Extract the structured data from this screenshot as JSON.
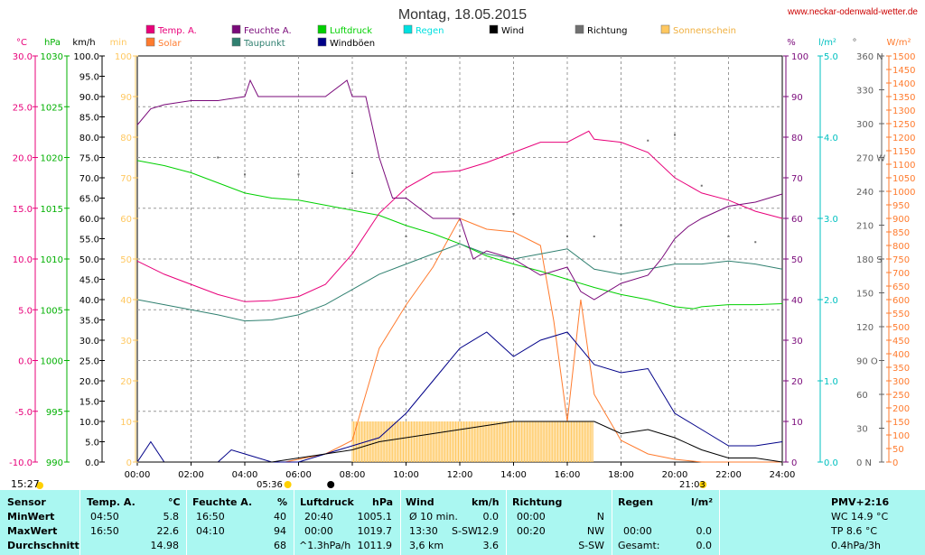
{
  "page": {
    "title": "Montag, 18.05.2015",
    "site": "www.neckar-odenwald-wetter.de",
    "update_time": "15:27",
    "sunrise": "05:36",
    "sunset": "21:03"
  },
  "chart_data": {
    "type": "line",
    "title": "Montag, 18.05.2015",
    "x_range_hours": [
      0,
      24
    ],
    "x_ticks": [
      "00:00",
      "02:00",
      "04:00",
      "06:00",
      "08:00",
      "10:00",
      "12:00",
      "14:00",
      "16:00",
      "18:00",
      "20:00",
      "22:00",
      "24:00"
    ],
    "grid": true,
    "legend": [
      {
        "name": "Temp. A.",
        "color": "#e8007a"
      },
      {
        "name": "Feuchte A.",
        "color": "#7a0a7a"
      },
      {
        "name": "Luftdruck",
        "color": "#00d000"
      },
      {
        "name": "Regen",
        "color": "#00e0e0"
      },
      {
        "name": "Wind",
        "color": "#000000"
      },
      {
        "name": "Richtung",
        "color": "#707070"
      },
      {
        "name": "Sonnenschein",
        "color": "#ffc860"
      },
      {
        "name": "Solar",
        "color": "#ff7b2e"
      },
      {
        "name": "Taupunkt",
        "color": "#308070"
      },
      {
        "name": "Windböen",
        "color": "#000088"
      }
    ],
    "axes": {
      "temp": {
        "unit": "°C",
        "min": -10,
        "max": 30,
        "color": "#e8007a",
        "ticks": [
          "30.0",
          "25.0",
          "20.0",
          "15.0",
          "10.0",
          "5.0",
          "0.0",
          "-5.0",
          "-10.0"
        ]
      },
      "pressure": {
        "unit": "hPa",
        "min": 990,
        "max": 1030,
        "color": "#00b000",
        "ticks": [
          "1030",
          "1025",
          "1020",
          "1015",
          "1010",
          "1005",
          "1000",
          "995",
          "990"
        ]
      },
      "wind": {
        "unit": "km/h",
        "min": 0,
        "max": 100,
        "color": "#000000",
        "ticks": [
          "100.0",
          "95.0",
          "90.0",
          "85.0",
          "80.0",
          "75.0",
          "70.0",
          "65.0",
          "60.0",
          "55.0",
          "50.0",
          "45.0",
          "40.0",
          "35.0",
          "30.0",
          "25.0",
          "20.0",
          "15.0",
          "10.0",
          "5.0",
          "0.0"
        ]
      },
      "sun": {
        "unit": "min",
        "min": 0,
        "max": 100,
        "color": "#ffc860",
        "ticks": [
          "100",
          "90",
          "80",
          "70",
          "60",
          "50",
          "40",
          "30",
          "20",
          "10",
          "0"
        ]
      },
      "humidity": {
        "unit": "%",
        "min": 0,
        "max": 100,
        "color": "#7a0a7a",
        "ticks": [
          "100",
          "90",
          "80",
          "70",
          "60",
          "50",
          "40",
          "30",
          "20",
          "10",
          "0"
        ]
      },
      "rain": {
        "unit": "l/m²",
        "min": 0,
        "max": 5,
        "color": "#00c0c0",
        "ticks": [
          "5.0",
          "4.0",
          "3.0",
          "2.0",
          "1.0",
          "0.0"
        ]
      },
      "direction": {
        "unit": "°",
        "min": 0,
        "max": 360,
        "color": "#606060",
        "ticks": [
          "360 N",
          "330",
          "300",
          "270 W",
          "240",
          "210",
          "180 S",
          "150",
          "120",
          "90 O",
          "60",
          "30",
          "0 N"
        ]
      },
      "solar": {
        "unit": "W/m²",
        "min": 0,
        "max": 1500,
        "color": "#ff7b2e",
        "ticks": [
          "1500",
          "1450",
          "1400",
          "1350",
          "1300",
          "1250",
          "1200",
          "1150",
          "1100",
          "1050",
          "1000",
          "950",
          "900",
          "850",
          "800",
          "750",
          "700",
          "650",
          "600",
          "550",
          "500",
          "450",
          "400",
          "350",
          "300",
          "250",
          "200",
          "150",
          "100",
          "50",
          "0"
        ]
      }
    },
    "series": {
      "temperature": [
        [
          0,
          9.8
        ],
        [
          1,
          8.5
        ],
        [
          2,
          7.5
        ],
        [
          3,
          6.5
        ],
        [
          4,
          5.8
        ],
        [
          5,
          5.9
        ],
        [
          6,
          6.3
        ],
        [
          7,
          7.5
        ],
        [
          8,
          10.5
        ],
        [
          9,
          14.5
        ],
        [
          10,
          17.0
        ],
        [
          11,
          18.5
        ],
        [
          12,
          18.7
        ],
        [
          13,
          19.5
        ],
        [
          14,
          20.5
        ],
        [
          15,
          21.5
        ],
        [
          16,
          21.5
        ],
        [
          16.8,
          22.6
        ],
        [
          17,
          21.8
        ],
        [
          18,
          21.5
        ],
        [
          19,
          20.5
        ],
        [
          20,
          18.0
        ],
        [
          21,
          16.5
        ],
        [
          22,
          15.8
        ],
        [
          23,
          14.7
        ],
        [
          24,
          14.0
        ]
      ],
      "humidity": [
        [
          0,
          83
        ],
        [
          0.5,
          87
        ],
        [
          1,
          88
        ],
        [
          2,
          89
        ],
        [
          3,
          89
        ],
        [
          4,
          90
        ],
        [
          4.2,
          94
        ],
        [
          4.5,
          90
        ],
        [
          6,
          90
        ],
        [
          7,
          90
        ],
        [
          7.8,
          94
        ],
        [
          8,
          90
        ],
        [
          8.5,
          90
        ],
        [
          9,
          75
        ],
        [
          9.5,
          65
        ],
        [
          10,
          65
        ],
        [
          11,
          60
        ],
        [
          12,
          60
        ],
        [
          12.5,
          50
        ],
        [
          13,
          52
        ],
        [
          14,
          50
        ],
        [
          15,
          46
        ],
        [
          16,
          48
        ],
        [
          16.5,
          42
        ],
        [
          17,
          40
        ],
        [
          18,
          44
        ],
        [
          19,
          46
        ],
        [
          19.5,
          50
        ],
        [
          20,
          55
        ],
        [
          20.5,
          58
        ],
        [
          21,
          60
        ],
        [
          22,
          63
        ],
        [
          23,
          64
        ],
        [
          24,
          66
        ]
      ],
      "dewpoint": [
        [
          0,
          6.0
        ],
        [
          1,
          5.5
        ],
        [
          2,
          5.0
        ],
        [
          3,
          4.5
        ],
        [
          4,
          3.9
        ],
        [
          5,
          4.0
        ],
        [
          6,
          4.5
        ],
        [
          7,
          5.5
        ],
        [
          8,
          7.0
        ],
        [
          9,
          8.5
        ],
        [
          10,
          9.5
        ],
        [
          11,
          10.5
        ],
        [
          12,
          11.5
        ],
        [
          13,
          10.5
        ],
        [
          14,
          10.0
        ],
        [
          15,
          10.5
        ],
        [
          16,
          11.0
        ],
        [
          17,
          9.0
        ],
        [
          18,
          8.5
        ],
        [
          19,
          9.0
        ],
        [
          20,
          9.5
        ],
        [
          21,
          9.5
        ],
        [
          22,
          9.8
        ],
        [
          23,
          9.5
        ],
        [
          24,
          9.0
        ]
      ],
      "pressure": [
        [
          0,
          1019.7
        ],
        [
          1,
          1019.2
        ],
        [
          2,
          1018.5
        ],
        [
          3,
          1017.5
        ],
        [
          4,
          1016.5
        ],
        [
          5,
          1016.0
        ],
        [
          6,
          1015.8
        ],
        [
          7,
          1015.3
        ],
        [
          8,
          1014.8
        ],
        [
          9,
          1014.3
        ],
        [
          10,
          1013.3
        ],
        [
          11,
          1012.5
        ],
        [
          12,
          1011.5
        ],
        [
          13,
          1010.3
        ],
        [
          14,
          1009.5
        ],
        [
          15,
          1008.8
        ],
        [
          16,
          1008.0
        ],
        [
          17,
          1007.2
        ],
        [
          18,
          1006.5
        ],
        [
          19,
          1006.0
        ],
        [
          20,
          1005.3
        ],
        [
          20.7,
          1005.1
        ],
        [
          21,
          1005.3
        ],
        [
          22,
          1005.5
        ],
        [
          23,
          1005.5
        ],
        [
          24,
          1005.6
        ]
      ],
      "wind": [
        [
          0,
          0
        ],
        [
          5,
          0
        ],
        [
          6,
          1
        ],
        [
          7,
          2
        ],
        [
          8,
          3
        ],
        [
          9,
          5
        ],
        [
          10,
          6
        ],
        [
          11,
          7
        ],
        [
          12,
          8
        ],
        [
          13,
          9
        ],
        [
          14,
          10
        ],
        [
          15,
          10
        ],
        [
          16,
          10
        ],
        [
          17,
          10
        ],
        [
          18,
          7
        ],
        [
          19,
          8
        ],
        [
          20,
          6
        ],
        [
          21,
          3
        ],
        [
          22,
          1
        ],
        [
          23,
          1
        ],
        [
          24,
          0
        ]
      ],
      "gusts": [
        [
          0,
          0
        ],
        [
          0.5,
          5
        ],
        [
          1,
          0
        ],
        [
          3,
          0
        ],
        [
          3.5,
          3
        ],
        [
          4,
          2
        ],
        [
          5,
          0
        ],
        [
          6,
          0
        ],
        [
          7,
          2
        ],
        [
          8,
          4
        ],
        [
          9,
          6
        ],
        [
          10,
          12
        ],
        [
          11,
          20
        ],
        [
          12,
          28
        ],
        [
          13,
          32
        ],
        [
          14,
          26
        ],
        [
          15,
          30
        ],
        [
          16,
          32
        ],
        [
          17,
          24
        ],
        [
          18,
          22
        ],
        [
          19,
          23
        ],
        [
          20,
          12
        ],
        [
          21,
          8
        ],
        [
          22,
          4
        ],
        [
          23,
          4
        ],
        [
          24,
          5
        ]
      ],
      "solar": [
        [
          0,
          0
        ],
        [
          5.5,
          0
        ],
        [
          6,
          10
        ],
        [
          7,
          30
        ],
        [
          8,
          80
        ],
        [
          8.5,
          250
        ],
        [
          9,
          420
        ],
        [
          10,
          580
        ],
        [
          11,
          720
        ],
        [
          12,
          900
        ],
        [
          12.5,
          880
        ],
        [
          13,
          860
        ],
        [
          14,
          850
        ],
        [
          15,
          800
        ],
        [
          15.5,
          520
        ],
        [
          16,
          150
        ],
        [
          16.5,
          600
        ],
        [
          17,
          250
        ],
        [
          18,
          80
        ],
        [
          19,
          30
        ],
        [
          20,
          10
        ],
        [
          21,
          0
        ],
        [
          24,
          0
        ]
      ],
      "sunshine": [
        [
          8,
          10
        ],
        [
          17,
          10
        ]
      ],
      "direction": [
        [
          3,
          270
        ],
        [
          4,
          255
        ],
        [
          6,
          255
        ],
        [
          8,
          256
        ],
        [
          10,
          200
        ],
        [
          12,
          200
        ],
        [
          14,
          220
        ],
        [
          16,
          200
        ],
        [
          17,
          200
        ],
        [
          18,
          210
        ],
        [
          19,
          285
        ],
        [
          20,
          290
        ],
        [
          21,
          245
        ],
        [
          22,
          200
        ],
        [
          23,
          195
        ]
      ]
    }
  },
  "table": {
    "headers": {
      "sensor": "Sensor",
      "temp": "Temp. A.",
      "temp_unit": "°C",
      "hum": "Feuchte A.",
      "hum_unit": "%",
      "press": "Luftdruck",
      "press_unit": "hPa",
      "wind": "Wind",
      "wind_unit": "km/h",
      "dir": "Richtung",
      "rain": "Regen",
      "rain_unit": "l/m²",
      "pmv": "PMV+2:16"
    },
    "min": {
      "label": "MinWert",
      "temp_time": "04:50",
      "temp_val": "5.8",
      "hum_time": "16:50",
      "hum_val": "40",
      "press_time": "20:40",
      "press_val": "1005.1",
      "wind_label": "Ø 10 min.",
      "wind_val": "0.0",
      "dir_time": "00:00",
      "dir_val": "N",
      "rain_time": "",
      "rain_val": "",
      "pmv": "WC 14.9 °C"
    },
    "max": {
      "label": "MaxWert",
      "temp_time": "16:50",
      "temp_val": "22.6",
      "hum_time": "04:10",
      "hum_val": "94",
      "press_time": "00:00",
      "press_val": "1019.7",
      "wind_time": "13:30",
      "wind_dir": "S-SW",
      "wind_val": "12.9",
      "dir_time": "00:20",
      "dir_val": "NW",
      "rain_time": "00:00",
      "rain_val": "0.0",
      "pmv": "TP 8.6 °C"
    },
    "avg": {
      "label": "Durchschnitt",
      "temp_val": "14.98",
      "hum_val": "68",
      "press_trend": "^1.3hPa/h",
      "press_val": "1011.9",
      "wind_dist": "3,6 km",
      "wind_val": "3.6",
      "dir_val": "S-SW",
      "rain_label": "Gesamt:",
      "rain_val": "0.0",
      "pmv": "0.4hPa/3h"
    }
  }
}
